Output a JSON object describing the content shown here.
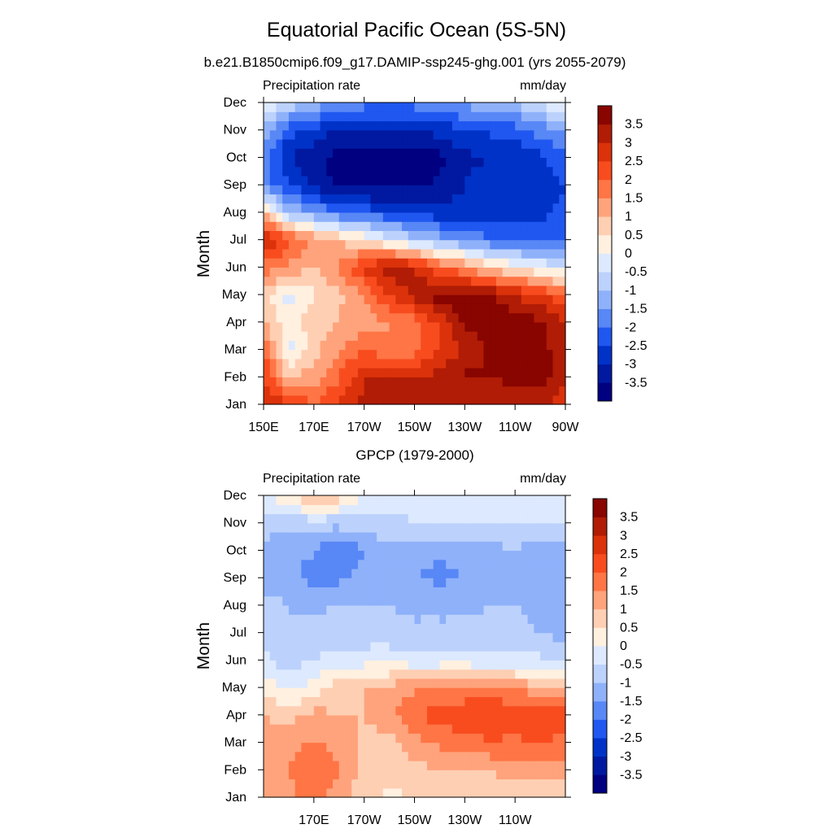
{
  "title": "Equatorial Pacific Ocean (5S-5N)",
  "colorbar": {
    "colors": [
      "#000080",
      "#0019a0",
      "#0032c8",
      "#1f57f0",
      "#5887f6",
      "#8fb1fa",
      "#bcd2fc",
      "#dde9fe",
      "#fff0e0",
      "#ffcfb3",
      "#ffa37c",
      "#ff7545",
      "#f84c1f",
      "#db320b",
      "#b01c05",
      "#880500"
    ],
    "labels": [
      "-3.5",
      "-3",
      "-2.5",
      "-2",
      "-1.5",
      "-1",
      "-0.5",
      "0",
      "0.5",
      "1",
      "1.5",
      "2",
      "2.5",
      "3",
      "3.5"
    ]
  },
  "chart_data": [
    {
      "type": "heatmap",
      "subtitle": "b.e21.B1850cmip6.f09_g17.DAMIP-ssp245-ghg.001 (yrs 2055-2079)",
      "left_label": "Precipitation rate",
      "right_label": "mm/day",
      "ylabel": "Month",
      "x_ticks": [
        "150E",
        "170E",
        "170W",
        "150W",
        "130W",
        "110W",
        "90W"
      ],
      "y_ticks": [
        "Jan",
        "Feb",
        "Mar",
        "Apr",
        "May",
        "Jun",
        "Jul",
        "Aug",
        "Sep",
        "Oct",
        "Nov",
        "Dec"
      ],
      "x_range": [
        150,
        270
      ],
      "units": "mm/day",
      "longitudes": [
        150,
        160,
        170,
        180,
        190,
        200,
        210,
        220,
        230,
        240,
        250,
        260,
        270
      ],
      "values": [
        [
          3.0,
          2.5,
          2.0,
          2.5,
          3.2,
          3.2,
          3.2,
          3.0,
          3.0,
          3.2,
          3.2,
          3.0,
          2.8
        ],
        [
          2.5,
          1.0,
          1.2,
          2.0,
          3.0,
          3.0,
          3.0,
          3.2,
          3.6,
          3.5,
          3.6,
          3.8,
          3.0
        ],
        [
          2.0,
          -0.3,
          0.8,
          1.5,
          2.0,
          1.5,
          1.8,
          2.5,
          3.0,
          3.6,
          3.8,
          3.8,
          3.0
        ],
        [
          1.0,
          0.2,
          0.8,
          1.0,
          1.2,
          1.5,
          1.8,
          2.6,
          3.6,
          3.8,
          3.8,
          3.6,
          3.0
        ],
        [
          0.8,
          -0.3,
          0.4,
          0.9,
          1.5,
          2.5,
          3.2,
          3.8,
          3.8,
          3.6,
          3.0,
          2.6,
          2.0
        ],
        [
          1.8,
          1.4,
          1.0,
          1.5,
          2.6,
          3.4,
          3.0,
          2.0,
          1.5,
          0.8,
          0.3,
          0.0,
          -0.4
        ],
        [
          3.2,
          2.2,
          1.5,
          1.0,
          0.5,
          -0.2,
          -0.8,
          -1.2,
          -1.6,
          -2.0,
          -2.2,
          -2.3,
          -2.2
        ],
        [
          1.0,
          -1.0,
          -1.5,
          -2.0,
          -2.2,
          -2.5,
          -2.6,
          -2.8,
          -2.8,
          -2.7,
          -2.6,
          -2.6,
          -2.3
        ],
        [
          -1.8,
          -2.5,
          -3.2,
          -3.6,
          -3.7,
          -3.7,
          -3.6,
          -3.4,
          -3.0,
          -2.8,
          -2.8,
          -2.8,
          -2.5
        ],
        [
          -1.8,
          -3.0,
          -3.4,
          -3.7,
          -3.8,
          -3.8,
          -3.7,
          -3.7,
          -3.1,
          -3.0,
          -2.9,
          -2.6,
          -2.2
        ],
        [
          -1.2,
          -2.3,
          -2.7,
          -3.0,
          -3.0,
          -3.1,
          -3.0,
          -2.8,
          -2.6,
          -2.4,
          -2.2,
          -1.8,
          -1.3
        ],
        [
          0.3,
          -0.6,
          -1.2,
          -1.6,
          -1.8,
          -1.8,
          -1.8,
          -1.5,
          -1.3,
          -1.2,
          -0.9,
          -0.5,
          0.2
        ]
      ]
    },
    {
      "type": "heatmap",
      "subtitle": "GPCP (1979-2000)",
      "left_label": "Precipitation rate",
      "right_label": "mm/day",
      "ylabel": "Month",
      "x_ticks": [
        "170E",
        "170W",
        "150W",
        "130W",
        "110W"
      ],
      "y_ticks": [
        "Jan",
        "Feb",
        "Mar",
        "Apr",
        "May",
        "Jun",
        "Jul",
        "Aug",
        "Sep",
        "Oct",
        "Nov",
        "Dec"
      ],
      "x_range": [
        150,
        270
      ],
      "units": "mm/day",
      "longitudes": [
        150,
        160,
        170,
        180,
        190,
        200,
        210,
        220,
        230,
        240,
        250,
        260,
        270
      ],
      "values": [
        [
          1.2,
          1.3,
          1.8,
          1.2,
          0.6,
          0.4,
          0.5,
          0.6,
          0.6,
          0.4,
          0.5,
          0.7,
          0.6
        ],
        [
          1.3,
          1.5,
          2.0,
          1.5,
          0.9,
          0.6,
          0.8,
          1.0,
          1.0,
          1.1,
          1.2,
          1.3,
          1.2
        ],
        [
          1.4,
          1.2,
          1.6,
          1.2,
          0.9,
          0.8,
          1.3,
          1.6,
          1.8,
          1.9,
          1.9,
          2.0,
          1.8
        ],
        [
          1.0,
          0.8,
          1.2,
          1.0,
          1.0,
          1.3,
          2.0,
          2.2,
          2.4,
          2.6,
          2.4,
          2.6,
          2.2
        ],
        [
          0.3,
          -0.2,
          0.3,
          0.8,
          1.0,
          1.2,
          1.4,
          1.5,
          1.6,
          1.6,
          1.4,
          1.2,
          0.8
        ],
        [
          -0.3,
          -0.8,
          -0.5,
          -0.3,
          -0.2,
          -0.2,
          -0.3,
          -0.3,
          -0.3,
          -0.4,
          -0.4,
          -0.4,
          -0.4
        ],
        [
          -0.6,
          -1.0,
          -0.8,
          -0.8,
          -0.8,
          -0.8,
          -0.9,
          -0.9,
          -0.9,
          -0.9,
          -0.9,
          -1.0,
          -1.2
        ],
        [
          -0.8,
          -1.0,
          -1.1,
          -1.0,
          -1.0,
          -1.0,
          -1.1,
          -1.1,
          -1.1,
          -1.0,
          -1.0,
          -1.1,
          -1.2
        ],
        [
          -1.6,
          -1.2,
          -1.8,
          -1.6,
          -1.3,
          -1.2,
          -1.5,
          -1.6,
          -1.5,
          -1.4,
          -1.3,
          -1.4,
          -1.5
        ],
        [
          -1.2,
          -1.5,
          -1.4,
          -2.1,
          -1.5,
          -1.2,
          -1.3,
          -1.5,
          -1.3,
          -1.2,
          -1.0,
          -1.3,
          -1.2
        ],
        [
          -0.7,
          -0.9,
          -0.8,
          -0.8,
          -0.7,
          -0.6,
          -0.5,
          -0.5,
          -0.5,
          -0.5,
          -0.5,
          -0.5,
          -0.5
        ],
        [
          -0.2,
          0.4,
          1.2,
          0.8,
          -0.1,
          -0.3,
          -0.4,
          -0.3,
          -0.3,
          -0.3,
          -0.3,
          -0.3,
          -0.4
        ]
      ]
    }
  ]
}
